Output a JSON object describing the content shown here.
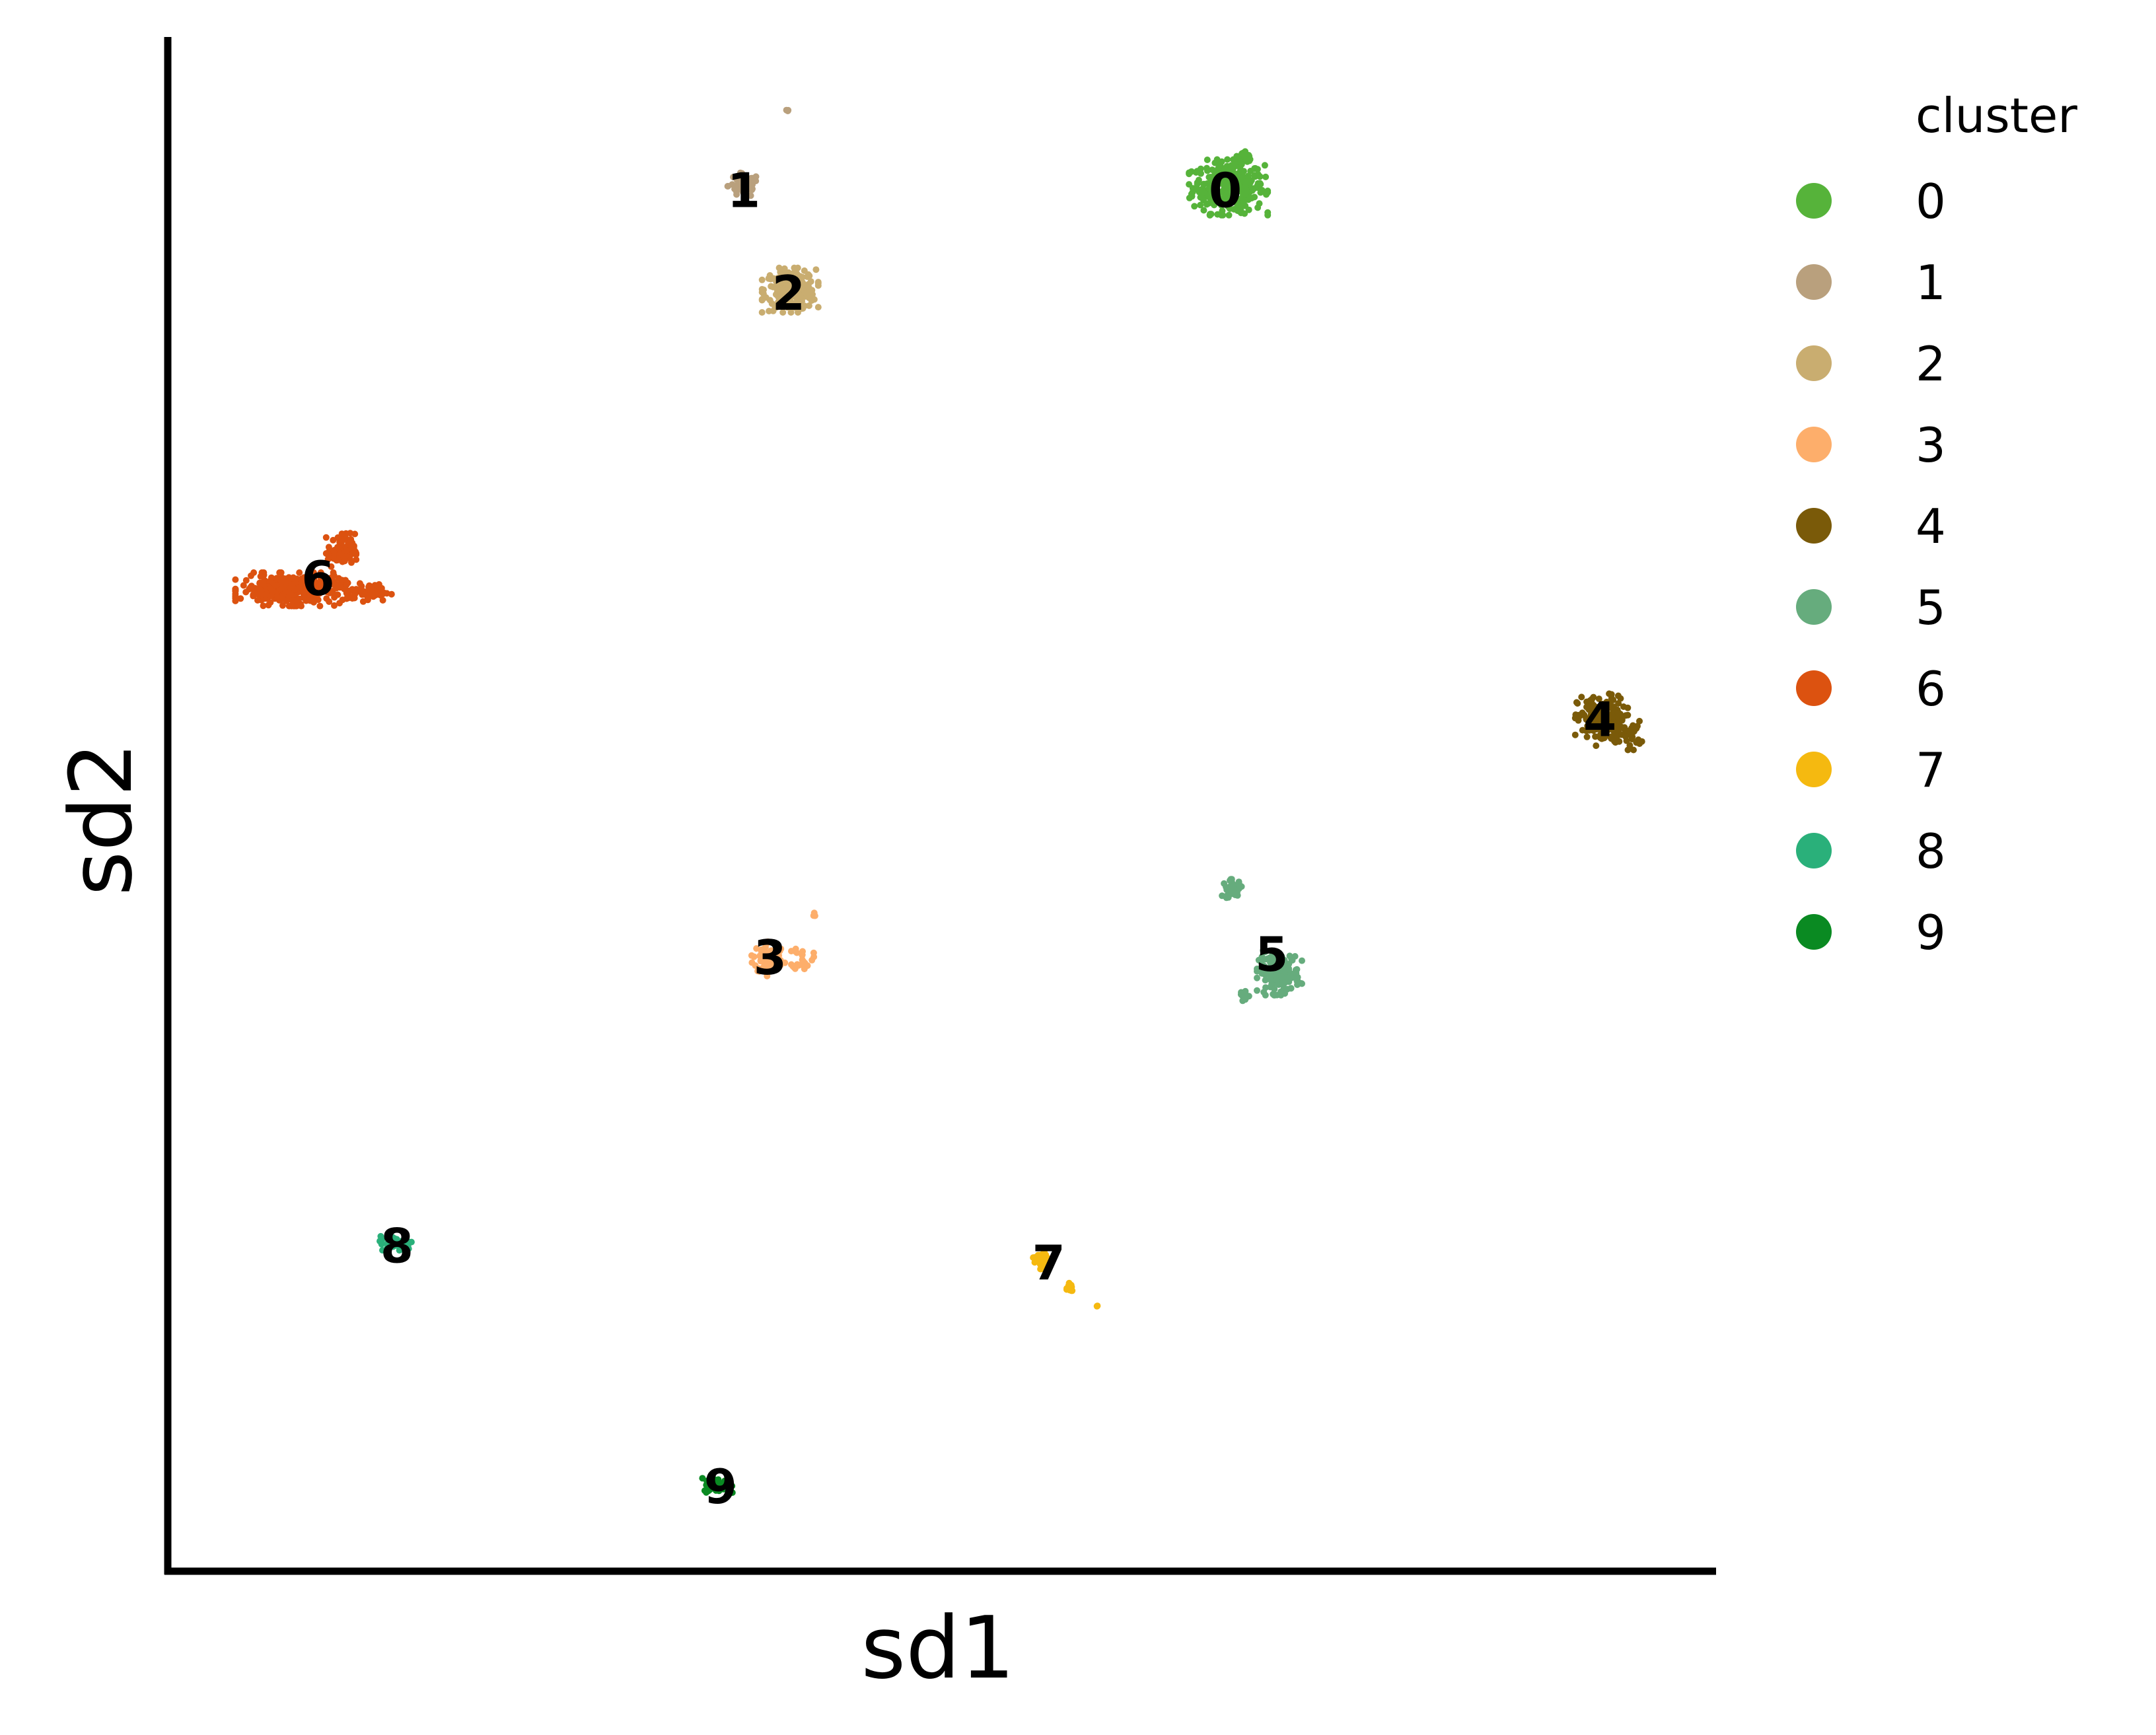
{
  "chart_data": {
    "type": "scatter",
    "xlabel": "sd1",
    "ylabel": "sd2",
    "xlim": [
      0,
      100
    ],
    "ylim": [
      0,
      100
    ],
    "ticks": false,
    "grid": false,
    "legend": {
      "title": "cluster",
      "placement": "right"
    },
    "series": [
      {
        "name": "0",
        "color": "#56b33a",
        "center": [
          68.5,
          90.2
        ],
        "spread": [
          2.1,
          1.5
        ],
        "count": 320,
        "extra": [
          [
            69.5,
            92.0,
            0.6,
            0.5,
            30
          ]
        ]
      },
      {
        "name": "1",
        "color": "#b9a07d",
        "center": [
          37.2,
          90.3
        ],
        "spread": [
          0.9,
          0.7
        ],
        "count": 60,
        "extra": [
          [
            40.0,
            95.2,
            0.1,
            0.1,
            3
          ]
        ]
      },
      {
        "name": "2",
        "color": "#c9ad70",
        "center": [
          40.2,
          83.5
        ],
        "spread": [
          1.5,
          1.2
        ],
        "count": 220,
        "extra": []
      },
      {
        "name": "3",
        "color": "#fdae6b",
        "center": [
          38.8,
          40.0
        ],
        "spread": [
          0.9,
          1.0
        ],
        "count": 70,
        "extra": [
          [
            41.0,
            40.0,
            0.6,
            0.7,
            25
          ],
          [
            41.8,
            42.8,
            0.15,
            0.15,
            3
          ]
        ]
      },
      {
        "name": "4",
        "color": "#7a5a09",
        "center": [
          92.6,
          55.5
        ],
        "spread": [
          1.4,
          1.4
        ],
        "count": 190,
        "extra": [
          [
            94.5,
            54.5,
            0.6,
            0.8,
            25
          ]
        ]
      },
      {
        "name": "5",
        "color": "#66ac7d",
        "center": [
          71.8,
          39.0
        ],
        "spread": [
          1.2,
          1.2
        ],
        "count": 150,
        "extra": [
          [
            68.8,
            44.5,
            0.6,
            0.5,
            35
          ],
          [
            69.5,
            37.5,
            0.3,
            0.5,
            12
          ]
        ]
      },
      {
        "name": "6",
        "color": "#dc5210",
        "center": [
          8.0,
          64.0
        ],
        "spread": [
          3.0,
          0.9
        ],
        "count": 360,
        "extra": [
          [
            11.2,
            66.5,
            0.8,
            1.0,
            90
          ],
          [
            13.0,
            63.8,
            1.2,
            0.5,
            60
          ]
        ]
      },
      {
        "name": "7",
        "color": "#f5b910",
        "center": [
          56.5,
          20.3
        ],
        "spread": [
          0.5,
          0.5
        ],
        "count": 45,
        "extra": [
          [
            58.2,
            18.5,
            0.3,
            0.4,
            12
          ],
          [
            60.0,
            17.3,
            0.1,
            0.1,
            2
          ]
        ]
      },
      {
        "name": "8",
        "color": "#2ab07a",
        "center": [
          14.8,
          21.4
        ],
        "spread": [
          1.0,
          0.4
        ],
        "count": 55,
        "extra": []
      },
      {
        "name": "9",
        "color": "#0a8a22",
        "center": [
          35.5,
          5.6
        ],
        "spread": [
          0.8,
          0.4
        ],
        "count": 60,
        "extra": []
      }
    ],
    "labels": [
      {
        "text": "0",
        "x": 68.3,
        "y": 90.0
      },
      {
        "text": "1",
        "x": 37.2,
        "y": 90.0
      },
      {
        "text": "2",
        "x": 40.1,
        "y": 83.3
      },
      {
        "text": "3",
        "x": 38.9,
        "y": 40.0
      },
      {
        "text": "4",
        "x": 92.5,
        "y": 55.5
      },
      {
        "text": "5",
        "x": 71.3,
        "y": 40.2
      },
      {
        "text": "6",
        "x": 9.7,
        "y": 64.7
      },
      {
        "text": "7",
        "x": 56.9,
        "y": 20.1
      },
      {
        "text": "8",
        "x": 14.8,
        "y": 21.2
      },
      {
        "text": "9",
        "x": 35.7,
        "y": 5.5
      }
    ]
  }
}
